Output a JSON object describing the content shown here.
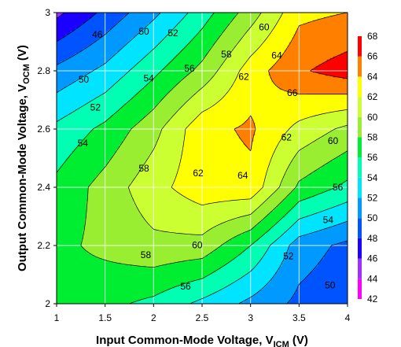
{
  "chart_data": {
    "type": "heatmap",
    "subtype": "filled-contour",
    "xlabel": "Input Common-Mode Voltage, V",
    "xlabel_sub": "ICM",
    "xlabel_unit": " (V)",
    "ylabel": "Output Common-Mode Voltage, V",
    "ylabel_sub": "OCM",
    "ylabel_unit": " (V)",
    "x_ticks": [
      "1",
      "1.5",
      "2",
      "2.5",
      "3",
      "3.5",
      "4"
    ],
    "y_ticks": [
      "2",
      "2.2",
      "2.4",
      "2.6",
      "2.8",
      "3"
    ],
    "xlim": [
      1,
      4
    ],
    "ylim": [
      2,
      3
    ],
    "grid": true,
    "x": [
      1,
      1.5,
      2,
      2.5,
      3,
      3.5,
      4
    ],
    "y": [
      2,
      2.2,
      2.4,
      2.6,
      2.8,
      3
    ],
    "z": [
      [
        57.5,
        56.5,
        55.5,
        53.5,
        51.5,
        49.5,
        48.5
      ],
      [
        57.5,
        58.5,
        59.5,
        59.3,
        56.0,
        51.0,
        49.5
      ],
      [
        56.5,
        58.8,
        61.3,
        63.2,
        63.5,
        57.6,
        55.5
      ],
      [
        54.5,
        56.5,
        59.3,
        63.4,
        64.3,
        61.4,
        59.5
      ],
      [
        50.5,
        52.5,
        55.5,
        58.6,
        63.0,
        65.7,
        67.0
      ],
      [
        45.5,
        48.5,
        51.5,
        55.0,
        59.0,
        63.5,
        64.0
      ]
    ],
    "levels": [
      42,
      44,
      46,
      48,
      50,
      52,
      54,
      56,
      58,
      60,
      62,
      64,
      66,
      68
    ],
    "colors": [
      "#ff00ff",
      "#9f30ff",
      "#1d00ff",
      "#0055ff",
      "#0099ff",
      "#00e4ff",
      "#00ffb3",
      "#00ee33",
      "#99ee33",
      "#ccff33",
      "#ffff00",
      "#ff8000",
      "#ff0000"
    ],
    "legend": {
      "placement": "right",
      "labels": [
        "68",
        "66",
        "64",
        "62",
        "60",
        "58",
        "56",
        "54",
        "52",
        "50",
        "48",
        "46",
        "44",
        "42"
      ]
    },
    "contour_labels": [
      {
        "text": "46",
        "x": 1.42,
        "y": 2.924
      },
      {
        "text": "50",
        "x": 1.9,
        "y": 2.935
      },
      {
        "text": "52",
        "x": 2.2,
        "y": 2.93
      },
      {
        "text": "50",
        "x": 1.28,
        "y": 2.77
      },
      {
        "text": "54",
        "x": 1.95,
        "y": 2.775
      },
      {
        "text": "56",
        "x": 2.37,
        "y": 2.808
      },
      {
        "text": "58",
        "x": 2.75,
        "y": 2.857
      },
      {
        "text": "60",
        "x": 3.14,
        "y": 2.95
      },
      {
        "text": "52",
        "x": 1.4,
        "y": 2.675
      },
      {
        "text": "62",
        "x": 2.93,
        "y": 2.78
      },
      {
        "text": "64",
        "x": 3.27,
        "y": 2.853
      },
      {
        "text": "66",
        "x": 3.43,
        "y": 2.724
      },
      {
        "text": "54",
        "x": 1.27,
        "y": 2.551
      },
      {
        "text": "62",
        "x": 3.37,
        "y": 2.571
      },
      {
        "text": "60",
        "x": 3.85,
        "y": 2.559
      },
      {
        "text": "58",
        "x": 1.9,
        "y": 2.465
      },
      {
        "text": "62",
        "x": 2.46,
        "y": 2.449
      },
      {
        "text": "64",
        "x": 2.92,
        "y": 2.44
      },
      {
        "text": "56",
        "x": 3.9,
        "y": 2.4
      },
      {
        "text": "54",
        "x": 3.8,
        "y": 2.288
      },
      {
        "text": "60",
        "x": 2.45,
        "y": 2.202
      },
      {
        "text": "58",
        "x": 1.92,
        "y": 2.168
      },
      {
        "text": "52",
        "x": 3.39,
        "y": 2.163
      },
      {
        "text": "56",
        "x": 2.33,
        "y": 2.059
      },
      {
        "text": "50",
        "x": 3.82,
        "y": 2.063
      }
    ]
  }
}
